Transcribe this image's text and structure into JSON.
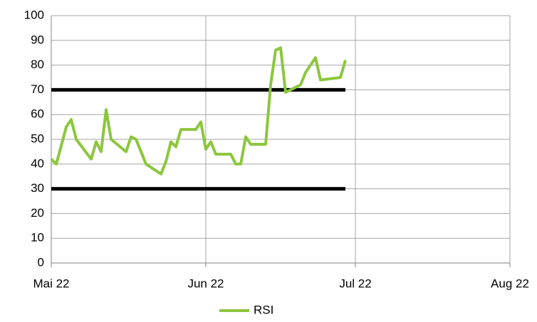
{
  "chart_data": {
    "type": "line",
    "x": [
      0,
      1,
      3,
      4,
      5,
      8,
      9,
      10,
      11,
      12,
      15,
      16,
      17,
      19,
      22,
      23,
      24,
      25,
      26,
      29,
      30,
      31,
      32,
      33,
      36,
      37,
      38,
      39,
      40,
      43,
      44,
      45,
      46,
      47,
      50,
      51,
      53,
      54,
      58,
      59
    ],
    "series": [
      {
        "name": "RSI",
        "color": "#8cc63e",
        "values": [
          42,
          40,
          55,
          58,
          50,
          42,
          49,
          45,
          62,
          50,
          45,
          51,
          50,
          40,
          36,
          41,
          49,
          47,
          54,
          54,
          57,
          46,
          49,
          44,
          44,
          40,
          40,
          51,
          48,
          48,
          72,
          86,
          87,
          69,
          72,
          77,
          83,
          74,
          75,
          82
        ]
      }
    ],
    "reference_lines": [
      {
        "value": 70,
        "x": [
          0,
          59
        ],
        "color": "#000000"
      },
      {
        "value": 30,
        "x": [
          0,
          59
        ],
        "color": "#000000"
      }
    ],
    "xlim": [
      0,
      92
    ],
    "xticks": [
      {
        "value": 0,
        "label": "Mai 22"
      },
      {
        "value": 31,
        "label": "Jun 22"
      },
      {
        "value": 61,
        "label": "Jul 22"
      },
      {
        "value": 92,
        "label": "Aug 22"
      }
    ],
    "ylim": [
      0,
      100
    ],
    "yticks": [
      0,
      10,
      20,
      30,
      40,
      50,
      60,
      70,
      80,
      90,
      100
    ],
    "grid": true
  }
}
